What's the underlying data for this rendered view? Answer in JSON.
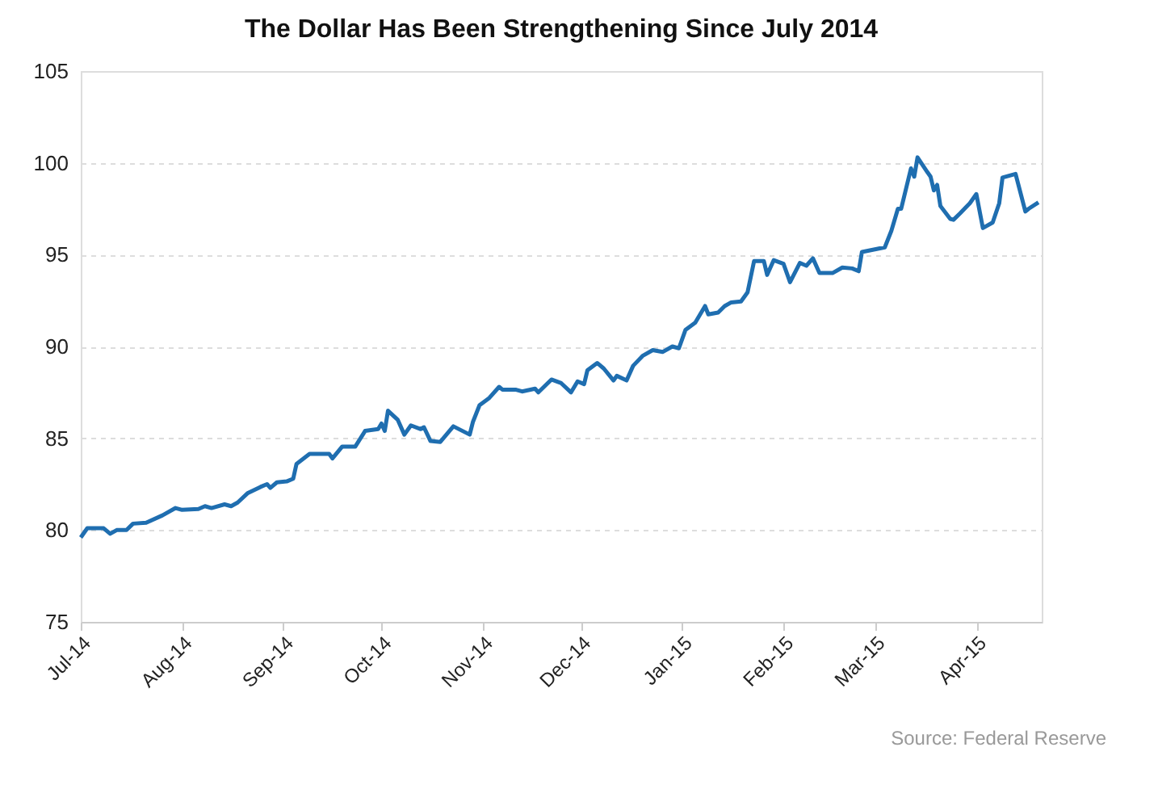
{
  "chart_data": {
    "type": "line",
    "title": "The Dollar Has Been Strengthening Since July 2014",
    "x": [
      "2014-07-01",
      "2014-07-03",
      "2014-07-06",
      "2014-07-08",
      "2014-07-10",
      "2014-07-12",
      "2014-07-15",
      "2014-07-17",
      "2014-07-21",
      "2014-07-26",
      "2014-07-30",
      "2014-08-01",
      "2014-08-06",
      "2014-08-08",
      "2014-08-10",
      "2014-08-14",
      "2014-08-16",
      "2014-08-18",
      "2014-08-21",
      "2014-08-25",
      "2014-08-27",
      "2014-08-28",
      "2014-08-30",
      "2014-09-02",
      "2014-09-04",
      "2014-09-05",
      "2014-09-09",
      "2014-09-15",
      "2014-09-16",
      "2014-09-19",
      "2014-09-23",
      "2014-09-26",
      "2014-09-30",
      "2014-10-01",
      "2014-10-02",
      "2014-10-03",
      "2014-10-06",
      "2014-10-08",
      "2014-10-10",
      "2014-10-13",
      "2014-10-14",
      "2014-10-16",
      "2014-10-19",
      "2014-10-23",
      "2014-10-28",
      "2014-10-29",
      "2014-10-31",
      "2014-11-03",
      "2014-11-06",
      "2014-11-07",
      "2014-11-11",
      "2014-11-13",
      "2014-11-17",
      "2014-11-18",
      "2014-11-22",
      "2014-11-25",
      "2014-11-28",
      "2014-11-30",
      "2014-12-02",
      "2014-12-03",
      "2014-12-06",
      "2014-12-08",
      "2014-12-11",
      "2014-12-12",
      "2014-12-15",
      "2014-12-17",
      "2014-12-20",
      "2014-12-23",
      "2014-12-26",
      "2014-12-29",
      "2014-12-31",
      "2015-01-02",
      "2015-01-05",
      "2015-01-08",
      "2015-01-09",
      "2015-01-12",
      "2015-01-14",
      "2015-01-16",
      "2015-01-19",
      "2015-01-21",
      "2015-01-23",
      "2015-01-26",
      "2015-01-27",
      "2015-01-29",
      "2015-02-01",
      "2015-02-03",
      "2015-02-06",
      "2015-02-08",
      "2015-02-10",
      "2015-02-12",
      "2015-02-16",
      "2015-02-19",
      "2015-02-22",
      "2015-02-24",
      "2015-02-25",
      "2015-03-04",
      "2015-03-06",
      "2015-03-08",
      "2015-03-09",
      "2015-03-12",
      "2015-03-13",
      "2015-03-14",
      "2015-03-17",
      "2015-03-18",
      "2015-03-19",
      "2015-03-20",
      "2015-03-21",
      "2015-03-24",
      "2015-03-25",
      "2015-03-27",
      "2015-03-30",
      "2015-04-01",
      "2015-04-03",
      "2015-04-06",
      "2015-04-08",
      "2015-04-09",
      "2015-04-13",
      "2015-04-16",
      "2015-04-17",
      "2015-04-20"
    ],
    "series": [
      {
        "color": "#1f6eb0",
        "values": [
          79.6,
          80.1,
          80.1,
          80.1,
          79.8,
          80.0,
          80.0,
          80.35,
          80.4,
          80.8,
          81.2,
          81.1,
          81.15,
          81.3,
          81.2,
          81.4,
          81.3,
          81.5,
          82.0,
          82.35,
          82.5,
          82.3,
          82.6,
          82.65,
          82.8,
          83.6,
          84.15,
          84.15,
          83.9,
          84.55,
          84.55,
          85.4,
          85.5,
          85.8,
          85.4,
          86.5,
          86.0,
          85.2,
          85.7,
          85.5,
          85.6,
          84.85,
          84.8,
          85.65,
          85.2,
          85.9,
          86.8,
          87.2,
          87.8,
          87.65,
          87.65,
          87.55,
          87.7,
          87.5,
          88.2,
          88.0,
          87.5,
          88.1,
          87.95,
          88.7,
          89.1,
          88.8,
          88.15,
          88.4,
          88.15,
          88.95,
          89.5,
          89.8,
          89.7,
          90.0,
          89.9,
          90.9,
          91.3,
          92.2,
          91.75,
          91.85,
          92.2,
          92.4,
          92.45,
          92.95,
          94.65,
          94.65,
          93.9,
          94.7,
          94.5,
          93.5,
          94.55,
          94.4,
          94.8,
          94.0,
          94.0,
          94.3,
          94.25,
          94.1,
          95.15,
          95.4,
          96.3,
          97.5,
          97.5,
          99.7,
          99.25,
          100.3,
          99.5,
          99.25,
          98.5,
          98.8,
          97.65,
          96.95,
          96.9,
          97.25,
          97.8,
          98.3,
          96.45,
          96.75,
          97.8,
          99.2,
          99.4,
          97.35,
          97.5,
          97.85
        ]
      }
    ],
    "xlim": [
      "2014-07-01",
      "2015-04-21"
    ],
    "xticks": [
      {
        "value": "2014-07-01",
        "label": "Jul-14"
      },
      {
        "value": "2014-08-01",
        "label": "Aug-14"
      },
      {
        "value": "2014-09-01",
        "label": "Sep-14"
      },
      {
        "value": "2014-10-01",
        "label": "Oct-14"
      },
      {
        "value": "2014-11-01",
        "label": "Nov-14"
      },
      {
        "value": "2014-12-01",
        "label": "Dec-14"
      },
      {
        "value": "2015-01-01",
        "label": "Jan-15"
      },
      {
        "value": "2015-02-01",
        "label": "Feb-15"
      },
      {
        "value": "2015-03-01",
        "label": "Mar-15"
      },
      {
        "value": "2015-04-01",
        "label": "Apr-15"
      }
    ],
    "ylim": [
      75,
      105
    ],
    "yticks": [
      75,
      80,
      85,
      90,
      95,
      100,
      105
    ],
    "grid": "y",
    "marker": "none",
    "line_style": "solid",
    "annotations": [
      "Source: Federal Reserve"
    ]
  }
}
